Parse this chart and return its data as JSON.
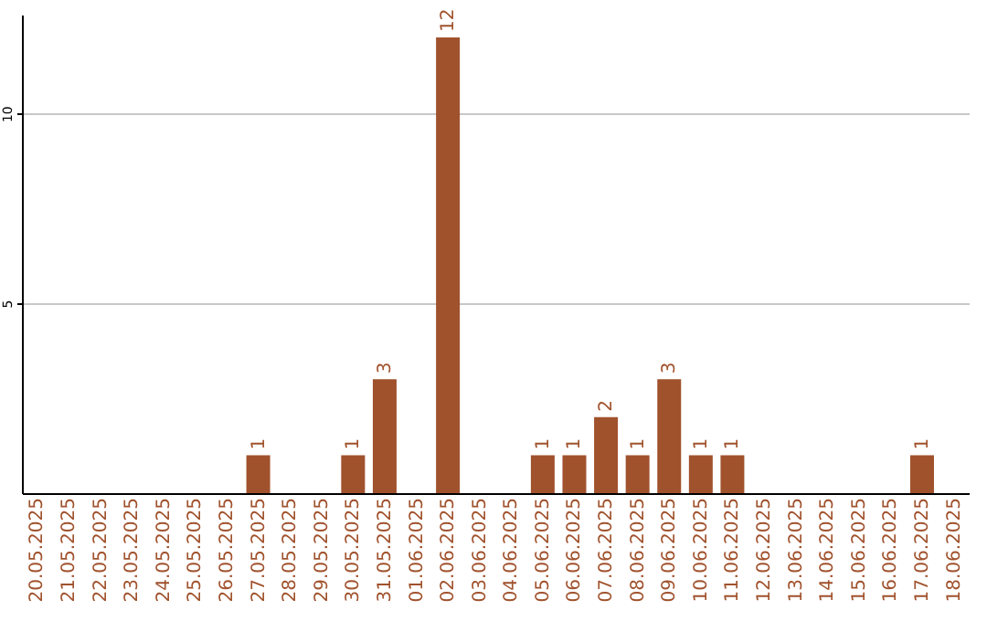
{
  "chart_data": {
    "type": "bar",
    "categories": [
      "20.05.2025",
      "21.05.2025",
      "22.05.2025",
      "23.05.2025",
      "24.05.2025",
      "25.05.2025",
      "26.05.2025",
      "27.05.2025",
      "28.05.2025",
      "29.05.2025",
      "30.05.2025",
      "31.05.2025",
      "01.06.2025",
      "02.06.2025",
      "03.06.2025",
      "04.06.2025",
      "05.06.2025",
      "06.06.2025",
      "07.06.2025",
      "08.06.2025",
      "09.06.2025",
      "10.06.2025",
      "11.06.2025",
      "12.06.2025",
      "13.06.2025",
      "14.06.2025",
      "15.06.2025",
      "16.06.2025",
      "17.06.2025",
      "18.06.2025"
    ],
    "values": [
      0,
      0,
      0,
      0,
      0,
      0,
      0,
      1,
      0,
      0,
      1,
      3,
      0,
      12,
      0,
      0,
      1,
      1,
      2,
      1,
      3,
      1,
      1,
      0,
      0,
      0,
      0,
      0,
      1,
      0
    ],
    "value_labels": [
      null,
      null,
      null,
      null,
      null,
      null,
      null,
      "1",
      null,
      null,
      "1",
      "3",
      null,
      "12",
      null,
      null,
      "1",
      "1",
      "2",
      "1",
      "3",
      "1",
      "1",
      null,
      null,
      null,
      null,
      null,
      "1",
      null
    ],
    "color": "#a0522d",
    "ylim": [
      0,
      12.6
    ],
    "yticks": [
      5,
      10
    ],
    "grid": "y"
  }
}
